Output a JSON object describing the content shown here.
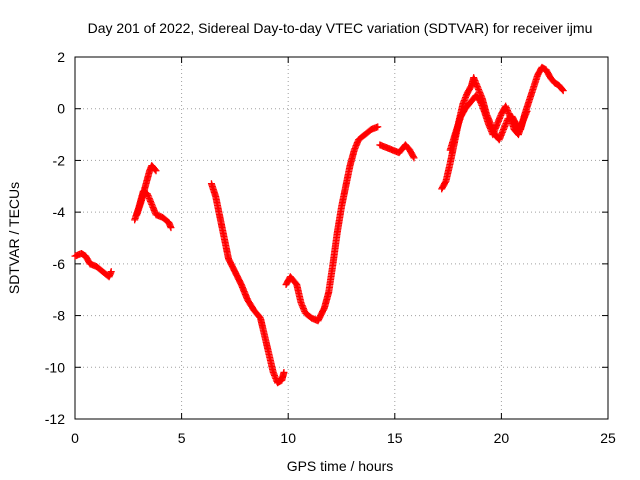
{
  "chart_data": {
    "type": "scatter",
    "title": "Day 201 of 2022, Sidereal Day-to-day VTEC variation (SDTVAR) for receiver ijmu",
    "xlabel": "GPS time / hours",
    "ylabel": "SDTVAR / TECUs",
    "xlim": [
      0,
      25
    ],
    "ylim": [
      -12,
      2
    ],
    "xticks": [
      0,
      5,
      10,
      15,
      20,
      25
    ],
    "yticks": [
      -12,
      -10,
      -8,
      -6,
      -4,
      -2,
      0,
      2
    ],
    "grid": true,
    "legend": "none",
    "marker": "plus",
    "color": "#ff0000",
    "segments": [
      [
        [
          0.0,
          -5.7
        ],
        [
          0.3,
          -5.6
        ],
        [
          0.5,
          -5.7
        ],
        [
          0.7,
          -6.0
        ],
        [
          1.0,
          -6.1
        ],
        [
          1.3,
          -6.3
        ],
        [
          1.6,
          -6.5
        ],
        [
          1.7,
          -6.3
        ]
      ],
      [
        [
          2.8,
          -4.3
        ],
        [
          3.0,
          -3.8
        ],
        [
          3.2,
          -3.2
        ],
        [
          3.4,
          -3.3
        ],
        [
          3.6,
          -3.7
        ],
        [
          3.8,
          -4.1
        ],
        [
          4.1,
          -4.2
        ],
        [
          4.4,
          -4.4
        ],
        [
          4.5,
          -4.6
        ]
      ],
      [
        [
          2.9,
          -4.1
        ],
        [
          3.1,
          -3.6
        ],
        [
          3.3,
          -3.0
        ],
        [
          3.5,
          -2.4
        ],
        [
          3.6,
          -2.2
        ],
        [
          3.8,
          -2.4
        ]
      ],
      [
        [
          6.4,
          -2.9
        ],
        [
          6.6,
          -3.4
        ],
        [
          6.8,
          -4.2
        ],
        [
          7.0,
          -5.0
        ],
        [
          7.2,
          -5.8
        ],
        [
          7.5,
          -6.3
        ],
        [
          7.8,
          -6.8
        ],
        [
          8.1,
          -7.4
        ],
        [
          8.4,
          -7.8
        ],
        [
          8.7,
          -8.1
        ],
        [
          8.9,
          -8.8
        ],
        [
          9.1,
          -9.5
        ],
        [
          9.3,
          -10.2
        ],
        [
          9.5,
          -10.6
        ],
        [
          9.7,
          -10.5
        ],
        [
          9.8,
          -10.2
        ]
      ],
      [
        [
          9.9,
          -6.8
        ],
        [
          10.1,
          -6.5
        ],
        [
          10.4,
          -6.8
        ],
        [
          10.6,
          -7.5
        ],
        [
          10.8,
          -7.9
        ],
        [
          11.1,
          -8.1
        ],
        [
          11.4,
          -8.2
        ],
        [
          11.7,
          -7.7
        ],
        [
          11.9,
          -7.1
        ],
        [
          12.1,
          -6.0
        ],
        [
          12.3,
          -4.8
        ],
        [
          12.5,
          -3.8
        ],
        [
          12.7,
          -3.0
        ],
        [
          12.9,
          -2.2
        ],
        [
          13.1,
          -1.6
        ],
        [
          13.3,
          -1.2
        ],
        [
          13.6,
          -1.0
        ],
        [
          13.9,
          -0.8
        ],
        [
          14.2,
          -0.7
        ]
      ],
      [
        [
          14.3,
          -1.4
        ],
        [
          14.6,
          -1.5
        ],
        [
          14.9,
          -1.6
        ],
        [
          15.2,
          -1.7
        ],
        [
          15.5,
          -1.4
        ],
        [
          15.7,
          -1.6
        ],
        [
          15.9,
          -1.9
        ]
      ],
      [
        [
          17.2,
          -3.1
        ],
        [
          17.4,
          -2.8
        ],
        [
          17.6,
          -2.1
        ],
        [
          17.8,
          -1.3
        ],
        [
          18.0,
          -0.5
        ],
        [
          18.2,
          0.2
        ],
        [
          18.4,
          0.6
        ],
        [
          18.6,
          0.9
        ],
        [
          18.7,
          1.2
        ],
        [
          18.9,
          0.8
        ],
        [
          19.1,
          0.4
        ],
        [
          19.3,
          -0.2
        ],
        [
          19.5,
          -0.6
        ],
        [
          19.7,
          -1.0
        ],
        [
          19.9,
          -1.2
        ],
        [
          20.1,
          -0.8
        ],
        [
          20.3,
          -0.4
        ],
        [
          20.5,
          -0.3
        ],
        [
          20.7,
          -0.6
        ],
        [
          20.9,
          -0.8
        ],
        [
          21.1,
          -0.2
        ],
        [
          21.3,
          0.3
        ],
        [
          21.5,
          0.8
        ],
        [
          21.7,
          1.3
        ],
        [
          21.9,
          1.6
        ],
        [
          22.1,
          1.5
        ],
        [
          22.3,
          1.2
        ],
        [
          22.5,
          1.0
        ],
        [
          22.7,
          0.9
        ],
        [
          22.9,
          0.7
        ]
      ],
      [
        [
          17.6,
          -1.6
        ],
        [
          17.9,
          -0.8
        ],
        [
          18.1,
          -0.3
        ],
        [
          18.3,
          0.0
        ],
        [
          18.5,
          0.2
        ],
        [
          18.8,
          0.5
        ],
        [
          19.0,
          0.3
        ],
        [
          19.2,
          -0.1
        ],
        [
          19.4,
          -0.6
        ],
        [
          19.6,
          -1.0
        ],
        [
          19.8,
          -0.6
        ],
        [
          20.0,
          -0.2
        ],
        [
          20.2,
          0.1
        ],
        [
          20.4,
          -0.3
        ],
        [
          20.6,
          -0.8
        ],
        [
          20.8,
          -1.0
        ],
        [
          21.0,
          -0.5
        ],
        [
          21.2,
          -0.1
        ]
      ]
    ]
  }
}
